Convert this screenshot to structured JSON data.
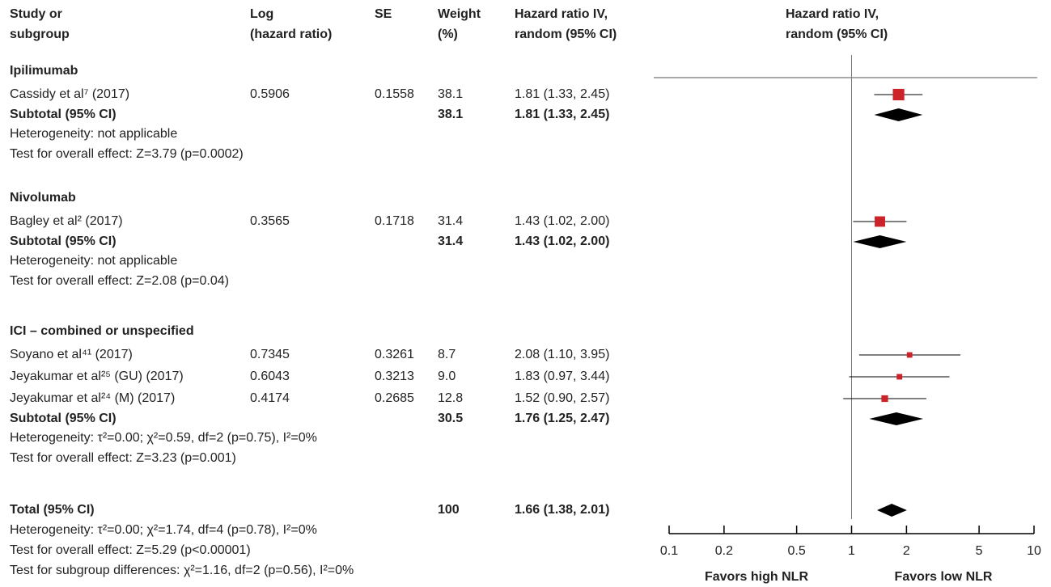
{
  "chart_data": {
    "type": "forest",
    "columns": {
      "study": [
        "Study or",
        "subgroup"
      ],
      "log_hr": [
        "Log",
        "(hazard ratio)"
      ],
      "se": [
        "SE"
      ],
      "weight": [
        "Weight",
        "(%)"
      ],
      "hr": [
        "Hazard ratio IV,",
        "random (95% CI)"
      ]
    },
    "plot_header": [
      "Hazard ratio IV,",
      "random (95% CI)"
    ],
    "groups": [
      {
        "name": "Ipilimumab",
        "studies": [
          {
            "name": "Cassidy et al⁷ (2017)",
            "log_hr": 0.5906,
            "se": 0.1558,
            "weight": 38.1,
            "hr": 1.81,
            "ci": [
              1.33,
              2.45
            ],
            "hr_label": "1.81 (1.33, 2.45)"
          }
        ],
        "subtotal": {
          "label": "Subtotal (95% CI)",
          "weight": 38.1,
          "hr": 1.81,
          "ci": [
            1.33,
            2.45
          ],
          "hr_label": "1.81 (1.33, 2.45)"
        },
        "heterogeneity": "Heterogeneity: not applicable",
        "overall_effect": "Test for overall effect: Z=3.79 (p=0.0002)"
      },
      {
        "name": "Nivolumab",
        "studies": [
          {
            "name": "Bagley et al² (2017)",
            "log_hr": 0.3565,
            "se": 0.1718,
            "weight": 31.4,
            "hr": 1.43,
            "ci": [
              1.02,
              2.0
            ],
            "hr_label": "1.43 (1.02, 2.00)"
          }
        ],
        "subtotal": {
          "label": "Subtotal (95% CI)",
          "weight": 31.4,
          "hr": 1.43,
          "ci": [
            1.02,
            2.0
          ],
          "hr_label": "1.43 (1.02, 2.00)"
        },
        "heterogeneity": "Heterogeneity: not applicable",
        "overall_effect": "Test for overall effect: Z=2.08 (p=0.04)"
      },
      {
        "name": "ICI – combined or unspecified",
        "studies": [
          {
            "name": "Soyano et al⁴¹ (2017)",
            "log_hr": 0.7345,
            "se": 0.3261,
            "weight": 8.7,
            "hr": 2.08,
            "ci": [
              1.1,
              3.95
            ],
            "hr_label": "2.08 (1.10, 3.95)"
          },
          {
            "name": "Jeyakumar et al²⁵ (GU) (2017)",
            "log_hr": 0.6043,
            "se": 0.3213,
            "weight": 9,
            "weight_label": "9.0",
            "hr": 1.83,
            "ci": [
              0.97,
              3.44
            ],
            "hr_label": "1.83 (0.97, 3.44)"
          },
          {
            "name": "Jeyakumar et al²⁴ (M) (2017)",
            "log_hr": 0.4174,
            "se": 0.2685,
            "weight": 12.8,
            "hr": 1.52,
            "ci": [
              0.9,
              2.57
            ],
            "hr_label": "1.52 (0.90, 2.57)"
          }
        ],
        "subtotal": {
          "label": "Subtotal (95% CI)",
          "weight": 30.5,
          "hr": 1.76,
          "ci": [
            1.25,
            2.47
          ],
          "hr_label": "1.76 (1.25, 2.47)"
        },
        "heterogeneity": "Heterogeneity: τ²=0.00; χ²=0.59, df=2 (p=0.75), I²=0%",
        "overall_effect": "Test for overall effect: Z=3.23 (p=0.001)"
      }
    ],
    "total": {
      "label": "Total (95% CI)",
      "weight": 100,
      "hr": 1.66,
      "ci": [
        1.38,
        2.01
      ],
      "hr_label": "1.66 (1.38, 2.01)",
      "heterogeneity": "Heterogeneity: τ²=0.00; χ²=1.74, df=4 (p=0.78), I²=0%",
      "overall_effect": "Test for overall effect: Z=5.29 (p<0.00001)",
      "subgroup_differences": "Test for subgroup differences: χ²=1.16, df=2 (p=0.56), I²=0%"
    },
    "xscale": "log",
    "xlim": [
      0.1,
      10
    ],
    "xticks": [
      0.1,
      0.2,
      0.5,
      1,
      2,
      5,
      10
    ],
    "reference": 1,
    "left_label": "Favors high NLR",
    "right_label": "Favors low NLR",
    "square_color": "#cc2229",
    "diamond_color": "#000000"
  }
}
